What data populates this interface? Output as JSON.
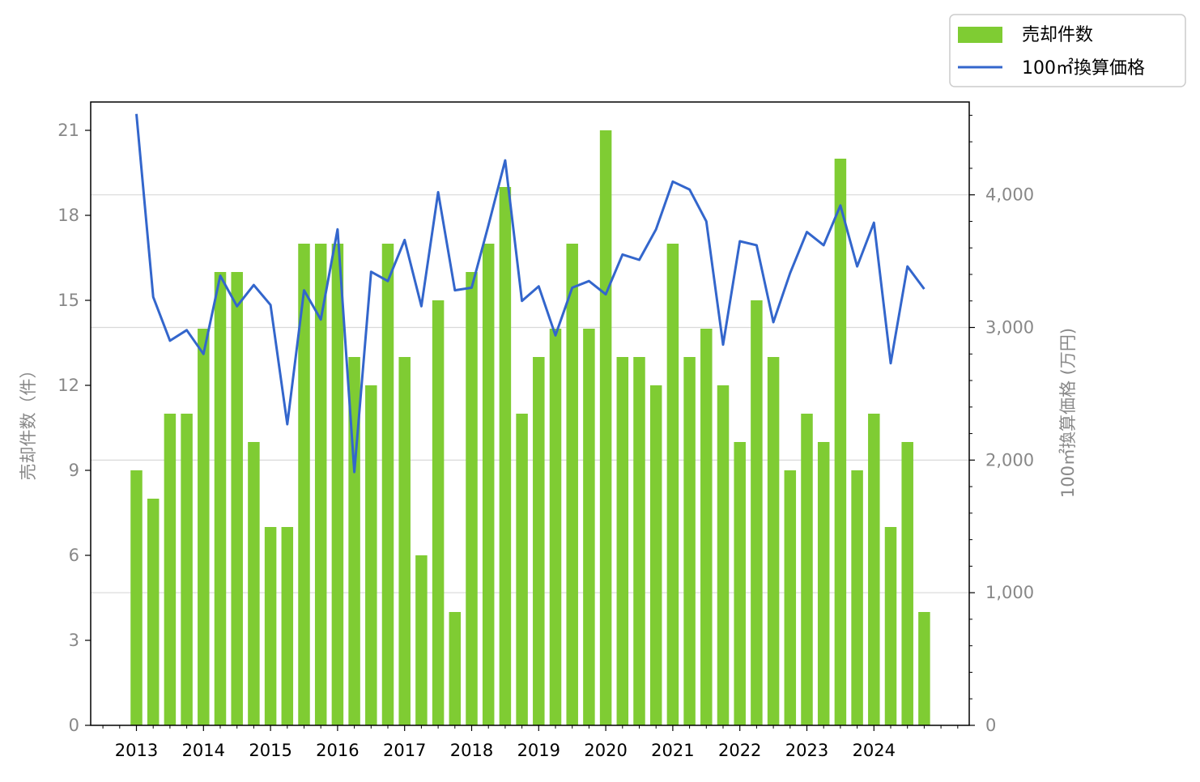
{
  "chart_data": {
    "type": "bar+line",
    "legend": {
      "position": "top-right",
      "entries": [
        {
          "label": "売却件数",
          "kind": "bar"
        },
        {
          "label": "100㎡換算価格",
          "kind": "line"
        }
      ]
    },
    "left_axis": {
      "label": "売却件数（件）",
      "ticks": [
        "0",
        "3",
        "6",
        "9",
        "12",
        "15",
        "18",
        "21"
      ],
      "ylim": [
        0,
        22
      ]
    },
    "right_axis": {
      "label": "100㎡換算価格 (万円)",
      "ticks": [
        "0",
        "1,000",
        "2,000",
        "3,000",
        "4,000"
      ],
      "ylim": [
        0,
        4700
      ]
    },
    "x_ticks": [
      "2013",
      "2014",
      "2015",
      "2016",
      "2017",
      "2018",
      "2019",
      "2020",
      "2021",
      "2022",
      "2023",
      "2024"
    ],
    "grid": "horizontal, right axis",
    "colors": {
      "bar": "#7fcc33",
      "line": "#3366cc",
      "grid": "#d9d9d9",
      "tick_text": "#888888"
    },
    "periods": [
      "2013Q1",
      "2013Q2",
      "2013Q3",
      "2013Q4",
      "2014Q1",
      "2014Q2",
      "2014Q3",
      "2014Q4",
      "2015Q1",
      "2015Q2",
      "2015Q3",
      "2015Q4",
      "2016Q1",
      "2016Q2",
      "2016Q3",
      "2016Q4",
      "2017Q1",
      "2017Q2",
      "2017Q3",
      "2017Q4",
      "2018Q1",
      "2018Q2",
      "2018Q3",
      "2018Q4",
      "2019Q1",
      "2019Q2",
      "2019Q3",
      "2019Q4",
      "2020Q1",
      "2020Q2",
      "2020Q3",
      "2020Q4",
      "2021Q1",
      "2021Q2",
      "2021Q3",
      "2021Q4",
      "2022Q1",
      "2022Q2",
      "2022Q3",
      "2022Q4",
      "2023Q1",
      "2023Q2",
      "2023Q3",
      "2023Q4",
      "2024Q1",
      "2024Q2",
      "2024Q3",
      "2024Q4"
    ],
    "series": [
      {
        "name": "売却件数",
        "axis": "left",
        "values": [
          9,
          8,
          11,
          11,
          14,
          16,
          16,
          10,
          7,
          7,
          17,
          17,
          17,
          13,
          12,
          17,
          13,
          6,
          15,
          4,
          16,
          17,
          19,
          11,
          13,
          14,
          17,
          14,
          21,
          13,
          13,
          12,
          17,
          13,
          14,
          12,
          10,
          15,
          13,
          9,
          11,
          10,
          20,
          9,
          11,
          7,
          10,
          4
        ]
      },
      {
        "name": "100㎡換算価格",
        "axis": "right",
        "values": [
          4610,
          3230,
          2900,
          2980,
          2800,
          3390,
          3160,
          3320,
          3170,
          2270,
          3280,
          3060,
          3740,
          1910,
          3420,
          3350,
          3660,
          3160,
          4020,
          3280,
          3300,
          3770,
          4260,
          3200,
          3310,
          2940,
          3300,
          3350,
          3250,
          3550,
          3510,
          3740,
          4100,
          4040,
          3800,
          2870,
          3650,
          3620,
          3040,
          3410,
          3720,
          3620,
          3920,
          3460,
          3790,
          2730,
          3460,
          3290
        ]
      }
    ]
  }
}
